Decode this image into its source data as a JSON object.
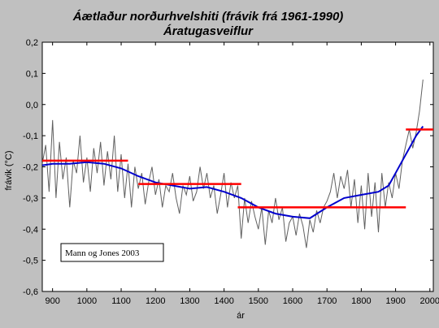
{
  "chart_data": {
    "type": "line",
    "title": "Áætlaður norðurhvelshiti (frávik frá 1961-1990)",
    "subtitle": "Áratugasveiflur",
    "xlabel": "ár",
    "ylabel": "frávik (°C)",
    "xlim": [
      870,
      2010
    ],
    "ylim": [
      -0.6,
      0.2
    ],
    "xticks": [
      900,
      1000,
      1100,
      1200,
      1300,
      1400,
      1500,
      1600,
      1700,
      1800,
      1900,
      2000
    ],
    "yticks": [
      "-0,6",
      "-0,5",
      "-0,4",
      "-0,3",
      "-0,2",
      "-0,1",
      "0,0",
      "0,1",
      "0,2"
    ],
    "yticks_values": [
      -0.6,
      -0.5,
      -0.4,
      -0.3,
      -0.2,
      -0.1,
      0.0,
      0.1,
      0.2
    ],
    "annotation": "Mann og Jones 2003",
    "grid": false,
    "series": [
      {
        "type": "line",
        "color": "#606060",
        "x": [
          870,
          880,
          890,
          900,
          910,
          920,
          930,
          940,
          950,
          960,
          970,
          980,
          990,
          1000,
          1010,
          1020,
          1030,
          1040,
          1050,
          1060,
          1070,
          1080,
          1090,
          1100,
          1110,
          1120,
          1130,
          1140,
          1150,
          1160,
          1170,
          1180,
          1190,
          1200,
          1210,
          1220,
          1230,
          1240,
          1250,
          1260,
          1270,
          1280,
          1290,
          1300,
          1310,
          1320,
          1330,
          1340,
          1350,
          1360,
          1370,
          1380,
          1390,
          1400,
          1410,
          1420,
          1430,
          1440,
          1450,
          1460,
          1470,
          1480,
          1490,
          1500,
          1510,
          1520,
          1530,
          1540,
          1550,
          1560,
          1570,
          1580,
          1590,
          1600,
          1610,
          1620,
          1630,
          1640,
          1650,
          1660,
          1670,
          1680,
          1690,
          1700,
          1710,
          1720,
          1730,
          1740,
          1750,
          1760,
          1770,
          1780,
          1790,
          1800,
          1810,
          1820,
          1830,
          1840,
          1850,
          1860,
          1870,
          1880,
          1890,
          1900,
          1910,
          1920,
          1930,
          1940,
          1950,
          1960,
          1970,
          1975,
          1980
        ],
        "y": [
          -0.19,
          -0.13,
          -0.28,
          -0.05,
          -0.3,
          -0.12,
          -0.24,
          -0.17,
          -0.33,
          -0.18,
          -0.22,
          -0.1,
          -0.25,
          -0.17,
          -0.28,
          -0.14,
          -0.22,
          -0.12,
          -0.26,
          -0.15,
          -0.24,
          -0.1,
          -0.28,
          -0.16,
          -0.3,
          -0.19,
          -0.33,
          -0.2,
          -0.27,
          -0.22,
          -0.32,
          -0.25,
          -0.2,
          -0.29,
          -0.24,
          -0.33,
          -0.26,
          -0.28,
          -0.22,
          -0.3,
          -0.35,
          -0.26,
          -0.29,
          -0.23,
          -0.31,
          -0.28,
          -0.2,
          -0.27,
          -0.22,
          -0.3,
          -0.26,
          -0.35,
          -0.29,
          -0.22,
          -0.33,
          -0.25,
          -0.3,
          -0.26,
          -0.43,
          -0.3,
          -0.38,
          -0.31,
          -0.36,
          -0.4,
          -0.33,
          -0.45,
          -0.34,
          -0.38,
          -0.3,
          -0.37,
          -0.33,
          -0.44,
          -0.38,
          -0.36,
          -0.42,
          -0.35,
          -0.39,
          -0.46,
          -0.37,
          -0.41,
          -0.34,
          -0.38,
          -0.33,
          -0.31,
          -0.28,
          -0.22,
          -0.3,
          -0.23,
          -0.27,
          -0.21,
          -0.33,
          -0.24,
          -0.38,
          -0.26,
          -0.4,
          -0.22,
          -0.36,
          -0.25,
          -0.41,
          -0.22,
          -0.33,
          -0.25,
          -0.3,
          -0.22,
          -0.27,
          -0.18,
          -0.13,
          -0.08,
          -0.14,
          -0.09,
          -0.02,
          0.03,
          0.08
        ]
      },
      {
        "type": "line",
        "color": "#0000cc",
        "x": [
          870,
          900,
          950,
          1000,
          1050,
          1100,
          1150,
          1200,
          1250,
          1300,
          1350,
          1400,
          1450,
          1500,
          1550,
          1600,
          1650,
          1700,
          1750,
          1800,
          1850,
          1880,
          1900,
          1920,
          1940,
          1960,
          1980
        ],
        "y": [
          -0.195,
          -0.19,
          -0.19,
          -0.185,
          -0.19,
          -0.205,
          -0.23,
          -0.25,
          -0.26,
          -0.27,
          -0.265,
          -0.28,
          -0.3,
          -0.33,
          -0.35,
          -0.36,
          -0.365,
          -0.33,
          -0.3,
          -0.29,
          -0.28,
          -0.26,
          -0.22,
          -0.18,
          -0.14,
          -0.1,
          -0.07
        ]
      },
      {
        "type": "step",
        "color": "#ff0000",
        "segments": [
          {
            "x": [
              870,
              1120
            ],
            "y": -0.18
          },
          {
            "x": [
              1150,
              1450
            ],
            "y": -0.255
          },
          {
            "x": [
              1440,
              1930
            ],
            "y": -0.33
          },
          {
            "x": [
              1930,
              2010
            ],
            "y": -0.08
          }
        ]
      }
    ]
  }
}
